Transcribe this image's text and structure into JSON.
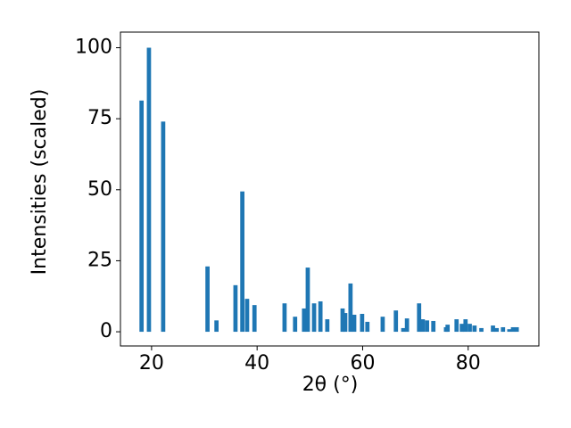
{
  "chart_data": {
    "type": "bar",
    "x_label": "2θ (°)",
    "y_label": "Intensities (scaled)",
    "color": "#1f77b4",
    "bar_width": 0.8,
    "x": [
      18.1,
      19.5,
      22.2,
      30.6,
      32.3,
      35.9,
      37.2,
      38.1,
      39.5,
      45.2,
      47.2,
      48.9,
      49.6,
      50.8,
      52.0,
      53.3,
      56.2,
      56.7,
      57.7,
      58.4,
      59.9,
      60.9,
      63.8,
      66.3,
      67.7,
      68.4,
      70.7,
      71.4,
      72.2,
      73.4,
      75.8,
      76.1,
      77.8,
      78.8,
      79.5,
      80.3,
      81.2,
      82.5,
      84.7,
      85.4,
      86.6,
      87.8,
      88.5,
      89.2
    ],
    "values": [
      81.4,
      100,
      74,
      23,
      4,
      16.4,
      49.4,
      11.6,
      9.4,
      10,
      5.3,
      8.2,
      22.6,
      10,
      10.7,
      4.4,
      8.2,
      6.6,
      17,
      6,
      6.3,
      3.5,
      5.3,
      7.5,
      1.3,
      4.7,
      10,
      4.4,
      4,
      3.8,
      1.6,
      2.5,
      4.4,
      2.8,
      4.4,
      2.8,
      2.2,
      1.3,
      2.2,
      1.3,
      1.6,
      0.9,
      1.6,
      1.6
    ],
    "xlim": [
      14.1,
      93.4
    ],
    "ylim": [
      -5,
      105.5
    ],
    "xticks": [
      20,
      40,
      60,
      80
    ],
    "yticks": [
      0,
      25,
      50,
      75,
      100
    ],
    "grid": false
  }
}
